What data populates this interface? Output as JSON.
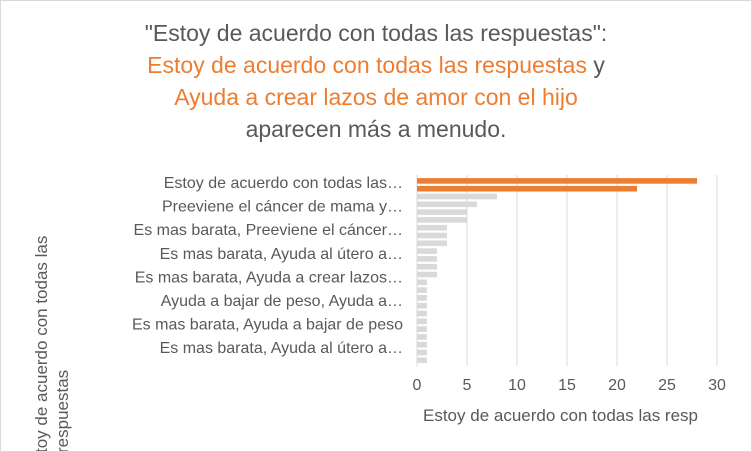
{
  "chart_data": {
    "type": "bar",
    "orientation": "horizontal",
    "title_parts": [
      "\"Estoy de acuerdo con todas las respuestas\":",
      "Estoy de acuerdo con todas las respuestas",
      " y",
      "Ayuda a crear lazos de amor con el hijo",
      "aparecen más a menudo."
    ],
    "xlabel": "Estoy de acuerdo con todas las resp",
    "ylabel": "toy de acuerdo con todas las respuestas",
    "xlim": [
      0,
      30
    ],
    "xticks": [
      0,
      5,
      10,
      15,
      20,
      25,
      30
    ],
    "tick_labels": [
      "Estoy de acuerdo con todas las…",
      "Preeviene el cáncer de mama y…",
      "Es mas barata, Preeviene el cáncer…",
      "Es mas barata, Ayuda al útero a…",
      "Es mas barata, Ayuda a crear lazos…",
      "Ayuda a bajar de peso, Ayuda a…",
      "Es mas barata, Ayuda a bajar de peso",
      "Es mas barata, Ayuda al útero a…"
    ],
    "values": [
      28,
      22,
      8,
      6,
      5,
      5,
      3,
      3,
      3,
      2,
      2,
      2,
      2,
      1,
      1,
      1,
      1,
      1,
      1,
      1,
      1,
      1,
      1,
      1
    ],
    "highlight_count": 2,
    "colors": {
      "highlight": "#ED7D31",
      "other": "#D9D9D9",
      "text": "#595959"
    },
    "grid": true,
    "legend": "none"
  }
}
